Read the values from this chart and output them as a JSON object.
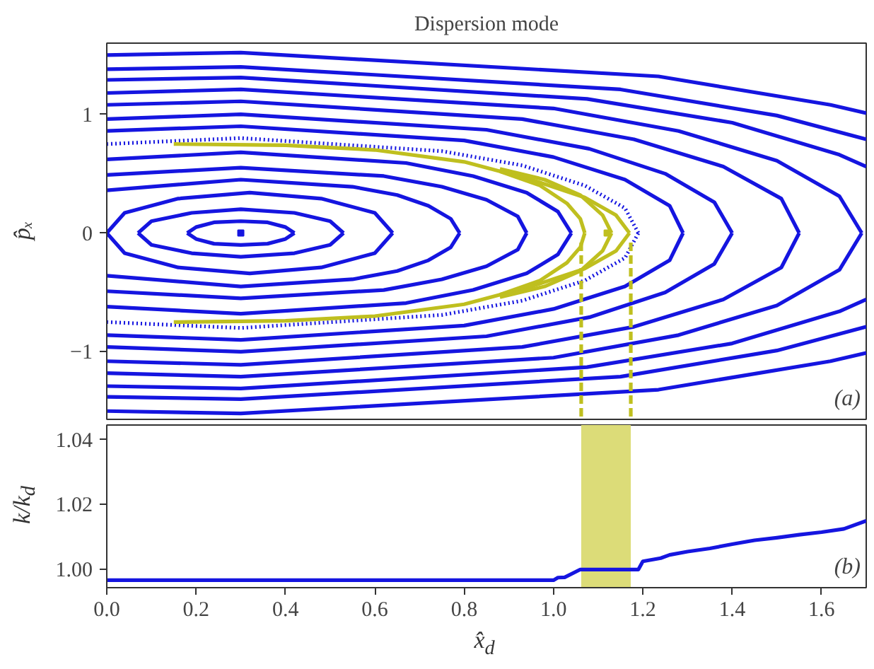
{
  "chart_data": [
    {
      "type": "line",
      "title": "Dispersion mode",
      "ylabel": "p̂ₓ",
      "xlim": [
        0,
        1.7
      ],
      "ylim": [
        -1.57,
        1.6
      ],
      "yticks": [
        {
          "value": -1,
          "label": "−1"
        },
        0,
        1
      ],
      "tick_labels": "y",
      "grid": false,
      "annotations": [
        "(a)"
      ],
      "series": [
        {
          "color": "#1515e0",
          "x": [
            0.18,
            0.2,
            0.24,
            0.3,
            0.36,
            0.4,
            0.42
          ],
          "values": [
            0,
            0.05,
            0.09,
            0.1,
            0.09,
            0.05,
            0
          ]
        },
        {
          "color": "#1515e0",
          "x": [
            0.18,
            0.2,
            0.24,
            0.3,
            0.36,
            0.4,
            0.42
          ],
          "values": [
            0,
            -0.05,
            -0.09,
            -0.1,
            -0.09,
            -0.05,
            0
          ]
        },
        {
          "color": "#1515e0",
          "x": [
            0.07,
            0.1,
            0.19,
            0.3,
            0.42,
            0.5,
            0.53
          ],
          "values": [
            0,
            0.1,
            0.17,
            0.2,
            0.17,
            0.1,
            0
          ]
        },
        {
          "color": "#1515e0",
          "x": [
            0.07,
            0.1,
            0.19,
            0.3,
            0.42,
            0.5,
            0.53
          ],
          "values": [
            0,
            -0.1,
            -0.17,
            -0.2,
            -0.17,
            -0.1,
            0
          ]
        },
        {
          "color": "#1515e0",
          "x": [
            0,
            0.04,
            0.16,
            0.32,
            0.48,
            0.6,
            0.64
          ],
          "values": [
            0,
            0.17,
            0.29,
            0.34,
            0.29,
            0.17,
            0
          ]
        },
        {
          "color": "#1515e0",
          "x": [
            0,
            0.04,
            0.16,
            0.32,
            0.48,
            0.6,
            0.64
          ],
          "values": [
            0,
            -0.17,
            -0.29,
            -0.34,
            -0.29,
            -0.17,
            0
          ]
        },
        {
          "color": "#1515e0",
          "x": [
            0,
            0.3,
            0.55,
            0.65,
            0.72,
            0.77,
            0.79
          ],
          "values": [
            0.36,
            0.45,
            0.39,
            0.32,
            0.23,
            0.12,
            0
          ]
        },
        {
          "color": "#1515e0",
          "x": [
            0,
            0.3,
            0.55,
            0.65,
            0.72,
            0.77,
            0.79
          ],
          "values": [
            -0.36,
            -0.45,
            -0.39,
            -0.32,
            -0.23,
            -0.12,
            0
          ]
        },
        {
          "color": "#1515e0",
          "x": [
            0,
            0.3,
            0.62,
            0.75,
            0.85,
            0.92,
            0.94
          ],
          "values": [
            0.49,
            0.55,
            0.48,
            0.39,
            0.28,
            0.14,
            0
          ]
        },
        {
          "color": "#1515e0",
          "x": [
            0,
            0.3,
            0.62,
            0.75,
            0.85,
            0.92,
            0.94
          ],
          "values": [
            -0.49,
            -0.55,
            -0.48,
            -0.39,
            -0.28,
            -0.14,
            0
          ]
        },
        {
          "color": "#1515e0",
          "x": [
            0,
            0.3,
            0.67,
            0.82,
            0.94,
            1.01,
            1.04
          ],
          "values": [
            0.62,
            0.68,
            0.59,
            0.48,
            0.34,
            0.18,
            0
          ]
        },
        {
          "color": "#1515e0",
          "x": [
            0,
            0.3,
            0.67,
            0.82,
            0.94,
            1.01,
            1.04
          ],
          "values": [
            -0.62,
            -0.68,
            -0.59,
            -0.48,
            -0.34,
            -0.18,
            0
          ]
        },
        {
          "color": "#1515e0",
          "line_style": "dotted",
          "x": [
            0,
            0.3,
            0.75,
            0.93,
            1.07,
            1.16,
            1.19
          ],
          "values": [
            0.75,
            0.8,
            0.69,
            0.57,
            0.4,
            0.21,
            0
          ]
        },
        {
          "color": "#1515e0",
          "line_style": "dotted",
          "x": [
            0,
            0.3,
            0.75,
            0.93,
            1.07,
            1.16,
            1.19
          ],
          "values": [
            -0.75,
            -0.8,
            -0.69,
            -0.57,
            -0.4,
            -0.21,
            0
          ]
        },
        {
          "color": "#1515e0",
          "x": [
            0,
            0.3,
            0.8,
            1.0,
            1.16,
            1.26,
            1.29
          ],
          "values": [
            0.86,
            0.9,
            0.78,
            0.64,
            0.45,
            0.23,
            0
          ]
        },
        {
          "color": "#1515e0",
          "x": [
            0,
            0.3,
            0.8,
            1.0,
            1.16,
            1.26,
            1.29
          ],
          "values": [
            -0.86,
            -0.9,
            -0.78,
            -0.64,
            -0.45,
            -0.23,
            0
          ]
        },
        {
          "color": "#1515e0",
          "x": [
            0,
            0.3,
            0.85,
            1.08,
            1.25,
            1.36,
            1.4
          ],
          "values": [
            0.96,
            1,
            0.87,
            0.71,
            0.5,
            0.26,
            0
          ]
        },
        {
          "color": "#1515e0",
          "x": [
            0,
            0.3,
            0.85,
            1.08,
            1.25,
            1.36,
            1.4
          ],
          "values": [
            -0.96,
            -1,
            -0.87,
            -0.71,
            -0.5,
            -0.26,
            0
          ]
        },
        {
          "color": "#1515e0",
          "x": [
            0,
            0.3,
            0.93,
            1.18,
            1.38,
            1.51,
            1.55
          ],
          "values": [
            1.08,
            1.11,
            0.96,
            0.79,
            0.56,
            0.29,
            0
          ]
        },
        {
          "color": "#1515e0",
          "x": [
            0,
            0.3,
            0.93,
            1.18,
            1.38,
            1.51,
            1.55
          ],
          "values": [
            -1.08,
            -1.11,
            -0.96,
            -0.79,
            -0.56,
            -0.29,
            0
          ]
        },
        {
          "color": "#1515e0",
          "x": [
            0,
            0.3,
            1.0,
            1.28,
            1.5,
            1.64,
            1.69
          ],
          "values": [
            1.18,
            1.21,
            1.05,
            0.86,
            0.61,
            0.31,
            0
          ]
        },
        {
          "color": "#1515e0",
          "x": [
            0,
            0.3,
            1.0,
            1.28,
            1.5,
            1.64,
            1.69
          ],
          "values": [
            -1.18,
            -1.21,
            -1.05,
            -0.86,
            -0.61,
            -0.31,
            0
          ]
        },
        {
          "color": "#1515e0",
          "x": [
            0,
            0.3,
            1.075,
            1.4,
            1.64,
            1.7
          ],
          "values": [
            1.29,
            1.31,
            1.13,
            0.93,
            0.66,
            0.56
          ]
        },
        {
          "color": "#1515e0",
          "x": [
            0,
            0.3,
            1.075,
            1.4,
            1.64,
            1.7
          ],
          "values": [
            -1.29,
            -1.31,
            -1.13,
            -0.93,
            -0.66,
            -0.56
          ]
        },
        {
          "color": "#1515e0",
          "x": [
            0,
            0.3,
            1.15,
            1.5,
            1.7
          ],
          "values": [
            1.38,
            1.4,
            1.21,
            0.99,
            0.79
          ]
        },
        {
          "color": "#1515e0",
          "x": [
            0,
            0.3,
            1.15,
            1.5,
            1.7
          ],
          "values": [
            -1.38,
            -1.4,
            -1.21,
            -0.99,
            -0.79
          ]
        },
        {
          "color": "#1515e0",
          "x": [
            0,
            0.3,
            1.235,
            1.62,
            1.7
          ],
          "values": [
            1.5,
            1.52,
            1.32,
            1.08,
            1.01
          ]
        },
        {
          "color": "#1515e0",
          "x": [
            0,
            0.3,
            1.235,
            1.62,
            1.7
          ],
          "values": [
            -1.5,
            -1.52,
            -1.32,
            -1.08,
            -1.01
          ]
        },
        {
          "color": "#bfbf1f",
          "x": [
            0.15,
            0.4,
            0.6,
            0.8,
            0.95,
            1.07,
            1.14,
            1.17
          ],
          "values": [
            0.75,
            0.74,
            0.7,
            0.6,
            0.45,
            0.3,
            0.15,
            0
          ]
        },
        {
          "color": "#bfbf1f",
          "x": [
            0.15,
            0.4,
            0.6,
            0.8,
            0.95,
            1.07,
            1.14,
            1.17
          ],
          "values": [
            -0.75,
            -0.74,
            -0.7,
            -0.6,
            -0.45,
            -0.3,
            -0.15,
            0
          ]
        },
        {
          "color": "#bfbf1f",
          "x": [
            0.88,
            0.98,
            1.06,
            1.11,
            1.13
          ],
          "values": [
            0.54,
            0.45,
            0.32,
            0.15,
            0
          ]
        },
        {
          "color": "#bfbf1f",
          "x": [
            0.88,
            0.98,
            1.06,
            1.11,
            1.13
          ],
          "values": [
            -0.54,
            -0.45,
            -0.32,
            -0.15,
            0
          ]
        },
        {
          "color": "#bfbf1f",
          "x": [
            0.88,
            0.97,
            1.03,
            1.06,
            1.07
          ],
          "values": [
            0.52,
            0.4,
            0.25,
            0.12,
            0
          ]
        },
        {
          "color": "#bfbf1f",
          "x": [
            0.88,
            0.97,
            1.03,
            1.06,
            1.07
          ],
          "values": [
            -0.52,
            -0.4,
            -0.25,
            -0.12,
            0
          ]
        },
        {
          "color": "#bfbf1f",
          "line_style": "dashed",
          "x": [
            1.062,
            1.062
          ],
          "values": [
            -0.08,
            -1.57
          ]
        },
        {
          "color": "#bfbf1f",
          "line_style": "dashed",
          "x": [
            1.173,
            1.173
          ],
          "values": [
            -0.08,
            -1.57
          ]
        },
        {
          "type": "scatter",
          "marker": "square",
          "color": "#1515e0",
          "x": [
            0.3
          ],
          "values": [
            0
          ]
        },
        {
          "type": "scatter",
          "marker": "square",
          "color": "#bfbf1f",
          "x": [
            1.12
          ],
          "values": [
            0
          ]
        }
      ]
    },
    {
      "type": "line",
      "xlabel": "x̂$_{d}$",
      "ylabel": "k/k$_{d}$",
      "xlim": [
        0,
        1.7
      ],
      "ylim": [
        0.9944,
        1.0445
      ],
      "grid": false,
      "annotations": [
        "(b)"
      ],
      "xticks": [
        {
          "value": 0,
          "label": "0.0"
        },
        {
          "value": 0.2,
          "label": "0.2"
        },
        {
          "value": 0.4,
          "label": "0.4"
        },
        {
          "value": 0.6,
          "label": "0.6"
        },
        {
          "value": 0.8,
          "label": "0.8"
        },
        {
          "value": 1,
          "label": "1.0"
        },
        {
          "value": 1.2,
          "label": "1.2"
        },
        {
          "value": 1.4,
          "label": "1.4"
        },
        {
          "value": 1.6,
          "label": "1.6"
        }
      ],
      "yticks": [
        {
          "value": 1,
          "label": "1.00"
        },
        {
          "value": 1.02,
          "label": "1.02"
        },
        {
          "value": 1.04,
          "label": "1.04"
        }
      ],
      "bands": [
        {
          "axis": "x",
          "from": 1.062,
          "to": 1.173,
          "color": "#dcdc78"
        }
      ],
      "series": [
        {
          "color": "#1515e0",
          "x": [
            0,
            1.0,
            1.01,
            1.025,
            1.06,
            1.19,
            1.2,
            1.24,
            1.26,
            1.3,
            1.35,
            1.4,
            1.45,
            1.5,
            1.55,
            1.6,
            1.65,
            1.7
          ],
          "values": [
            0.9967,
            0.9967,
            0.9975,
            0.9976,
            1.0,
            1.0,
            1.0025,
            1.0035,
            1.0045,
            1.0055,
            1.0065,
            1.0078,
            1.009,
            1.0098,
            1.0107,
            1.0115,
            1.0125,
            1.015
          ]
        }
      ]
    }
  ]
}
